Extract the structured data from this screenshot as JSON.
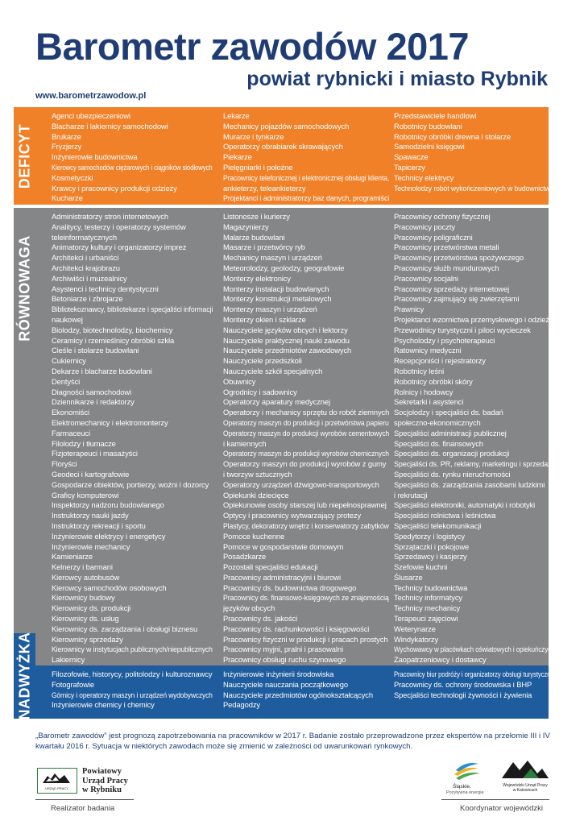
{
  "header": {
    "title": "Barometr zawodów 2017",
    "subtitle": "powiat rybnicki i miasto Rybnik",
    "website": "www.barometrzawodow.pl"
  },
  "colors": {
    "deficyt": "#f08129",
    "rownowaga": "#858688",
    "nadwyzka": "#1f5c9d",
    "title": "#1f3d74"
  },
  "sections": {
    "deficyt": {
      "label": "DEFICYT",
      "col1": [
        "Agenci ubezpieczeniowi",
        "Blacharze i lakiernicy samochodowi",
        "Brukarze",
        "Fryzjerzy",
        "Inżynierowie budownictwa",
        "Kierowcy samochodów ciężarowych i ciągników siodłowych",
        "Kosmetyczki",
        "Krawcy i pracownicy produkcji odzieży",
        "Kucharze"
      ],
      "col2": [
        "Lekarze",
        "Mechanicy pojazdów samochodowych",
        "Murarze i tynkarze",
        "Operatorzy obrabiarek skrawających",
        "Piekarze",
        "Pielęgniarki i położne",
        "Pracownicy telefonicznej i elektronicznej obsługi klienta,",
        "ankieterzy, teleankieterzy",
        "Projektanci i administratorzy baz danych, programiści"
      ],
      "col3": [
        "Przedstawiciele handlowi",
        "Robotnicy budowlani",
        "Robotnicy obróbki drewna i stolarze",
        "Samodzielni księgowi",
        "Spawacze",
        "Tapicerzy",
        "Technicy elektrycy",
        "Technolodzy robót wykończeniowych w budownictwie"
      ]
    },
    "rownowaga": {
      "label": "RÓWNOWAGA",
      "col1": [
        "Administratorzy stron internetowych",
        "Analitycy, testerzy i operatorzy systemów",
        "teleinformatycznych",
        "Animatorzy kultury i organizatorzy imprez",
        "Architekci i urbaniści",
        "Architekci krajobrazu",
        "Archiwiści i muzealnicy",
        "Asystenci i technicy dentystyczni",
        "Betoniarze i zbrojarze",
        "Bibliotekoznawcy, bibliotekarze i specjaliści informacji",
        "naukowej",
        "Biolodzy, biotechnolodzy, biochemicy",
        "Ceramicy i rzemieślnicy obróbki szkła",
        "Cieśle i stolarze budowlani",
        "Cukiernicy",
        "Dekarze i blacharze budowlani",
        "Dentyści",
        "Diagności samochodowi",
        "Dziennikarze i redaktorzy",
        "Ekonomiści",
        "Elektromechanicy i elektromonterzy",
        "Farmaceuci",
        "Filolodzy i tłumacze",
        "Fizjoterapeuci i masażyści",
        "Floryści",
        "Geodeci i kartografowie",
        "Gospodarze obiektów, portierzy, woźni i dozorcy",
        "Graficy komputerowi",
        "Inspektorzy nadzoru budowlanego",
        "Instruktorzy nauki jazdy",
        "Instruktorzy rekreacji i sportu",
        "Inżynierowie elektrycy i energetycy",
        "Inżynierowie mechanicy",
        "Kamieniarze",
        "Kelnerzy i barmani",
        "Kierowcy autobusów",
        "Kierowcy samochodów osobowych",
        "Kierownicy budowy",
        "Kierownicy ds. produkcji",
        "Kierownicy ds. usług",
        "Kierownicy ds. zarządzania i obsługi biznesu",
        "Kierownicy sprzedaży",
        "Kierownicy w instytucjach publicznych/niepublicznych",
        "Lakiernicy"
      ],
      "col2": [
        "Listonosze i kurierzy",
        "Magazynierzy",
        "Malarze budowlani",
        "Masarze i przetwórcy ryb",
        "Mechanicy maszyn i urządzeń",
        "Meteorolodzy, geolodzy, geografowie",
        "Monterzy elektronicy",
        "Monterzy instalacji budowlanych",
        "Monterzy konstrukcji metalowych",
        "Monterzy maszyn i urządzeń",
        "Monterzy okien i szklarze",
        "Nauczyciele języków obcych i lektorzy",
        "Nauczyciele praktycznej nauki zawodu",
        "Nauczyciele przedmiotów zawodowych",
        "Nauczyciele przedszkoli",
        "Nauczyciele szkół specjalnych",
        "Obuwnicy",
        "Ogrodnicy i sadownicy",
        "Operatorzy aparatury medycznej",
        "Operatorzy i mechanicy sprzętu do robót ziemnych",
        "Operatorzy maszyn do produkcji i przetwórstwa papieru",
        "Operatorzy maszyn do produkcji wyrobów cementowych",
        "i kamiennych",
        "Operatorzy maszyn do produkcji wyrobów chemicznych",
        "Operatorzy maszyn do produkcji wyrobów z gumy",
        "i tworzyw sztucznych",
        "Operatorzy urządzeń dźwigowo-transportowych",
        "Opiekunki dziecięce",
        "Opiekunowie osoby starszej lub niepełnosprawnej",
        "Optycy i pracownicy wytwarzający protezy",
        "Plastycy, dekoratorzy wnętrz i konserwatorzy zabytków",
        "Pomoce kuchenne",
        "Pomoce w gospodarstwie domowym",
        "Posadzkarze",
        "Pozostali specjaliści edukacji",
        "Pracownicy administracyjni i biurowi",
        "Pracownicy ds. budownictwa drogowego",
        "Pracownicy ds. finansowo-księgowych ze znajomością",
        "języków obcych",
        "Pracownicy ds. jakości",
        "Pracownicy ds. rachunkowości i księgowości",
        "Pracownicy fizyczni w produkcji i pracach prostych",
        "Pracownicy myjni, pralni i prasowalni",
        "Pracownicy obsługi ruchu szynowego"
      ],
      "col3": [
        "Pracownicy ochrony fizycznej",
        "Pracownicy poczty",
        "Pracownicy poligraficzni",
        "Pracownicy przetwórstwa metali",
        "Pracownicy przetwórstwa spożywczego",
        "Pracownicy służb mundurowych",
        "Pracownicy socjalni",
        "Pracownicy sprzedaży internetowej",
        "Pracownicy zajmujący się zwierzętami",
        "Prawnicy",
        "Projektanci wzornictwa przemysłowego i odzieży",
        "Przewodnicy turystyczni i piloci wycieczek",
        "Psycholodzy i psychoterapeuci",
        "Ratownicy medyczni",
        "Recepcjoniści i rejestratorzy",
        "Robotnicy leśni",
        "Robotnicy obróbki skóry",
        "Rolnicy i hodowcy",
        "Sekretarki i asystenci",
        "Socjolodzy i specjaliści ds. badań",
        "społeczno-ekonomicznych",
        "Specjaliści administracji publicznej",
        "Specjaliści ds. finansowych",
        "Specjaliści ds. organizacji produkcji",
        "Specjaliści ds. PR, reklamy, marketingu i sprzedaży",
        "Specjaliści ds. rynku nieruchomości",
        "Specjaliści ds. zarządzania zasobami ludzkimi",
        "i rekrutacji",
        "Specjaliści elektroniki, automatyki i robotyki",
        "Specjaliści rolnictwa i leśnictwa",
        "Specjaliści telekomunikacji",
        "Spedytorzy i logistycy",
        "Sprzątaczki i pokojowe",
        "Sprzedawcy i kasjerzy",
        "Szefowie kuchni",
        "Ślusarze",
        "Technicy budownictwa",
        "Technicy informatycy",
        "Technicy mechanicy",
        "Terapeuci zajęciowi",
        "Weterynarze",
        "Windykatorzy",
        "Wychowawcy w placówkach oświatowych i opiekuńczych",
        "Zaopatrzeniowcy i dostawcy"
      ]
    },
    "nadwyzka": {
      "label": "NADWYŻKA",
      "col1": [
        "Filozofowie, historycy, politolodzy i kulturoznawcy",
        "Fotografowie",
        "Górnicy i operatorzy maszyn i urządzeń wydobywczych",
        "Inżynierowie chemicy i chemicy"
      ],
      "col2": [
        "Inżynierowie inżynierii środowiska",
        "Nauczyciele nauczania początkowego",
        "Nauczyciele przedmiotów ogólnokształcących",
        "Pedagodzy"
      ],
      "col3": [
        "Pracownicy biur podróży i organizatorzy obsługi turystycznej",
        "Pracownicy ds. ochrony środowiska i BHP",
        "Specjaliści technologii żywności i żywienia"
      ]
    }
  },
  "footer": {
    "note": "„Barometr zawodów” jest prognozą zapotrzebowania na pracowników w 2017 r. Badanie zostało przeprowadzone przez ekspertów na przełomie III i IV kwartału 2016 r. Sytuacja w niektórych zawodach może się zmienić w zależności od uwarunkowań rynkowych.",
    "realizator": "Realizator badania",
    "koordynator": "Koordynator wojewódzki",
    "pup_name": [
      "Powiatowy",
      "Urząd Pracy",
      "w Rybniku"
    ],
    "pup_small": "URZĄD PRACY",
    "slaskie_name": "Śląskie.",
    "slaskie_tagline": "Pozytywna energia",
    "wup_name": [
      "Wojewódzki Urząd Pracy",
      "w Katowicach"
    ]
  }
}
